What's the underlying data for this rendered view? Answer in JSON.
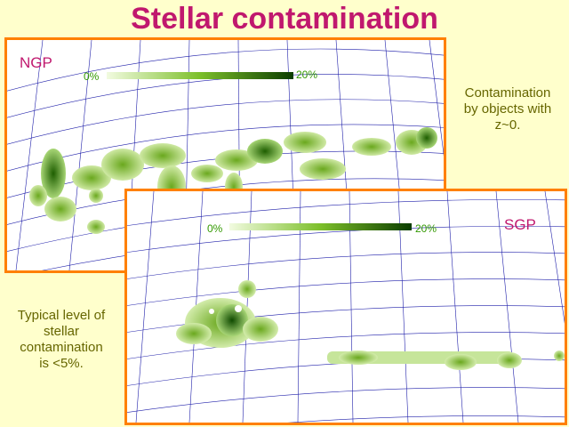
{
  "title": "Stellar contamination",
  "panels": {
    "ngp": {
      "label": "NGP",
      "scale_min": "0%",
      "scale_max": "20%"
    },
    "sgp": {
      "label": "SGP",
      "scale_min": "0%",
      "scale_max": "20%"
    }
  },
  "notes": {
    "right": [
      "Contamination",
      "by objects with",
      "z~0."
    ],
    "left": [
      "Typical level  of",
      "stellar",
      "contamination",
      "is <5%."
    ]
  },
  "colors": {
    "title": "#c0186e",
    "frame": "#ff8000",
    "note_text": "#666600",
    "grid": "#2020aa",
    "map_high": "#0b3d00",
    "map_low": "#c8e89a"
  }
}
